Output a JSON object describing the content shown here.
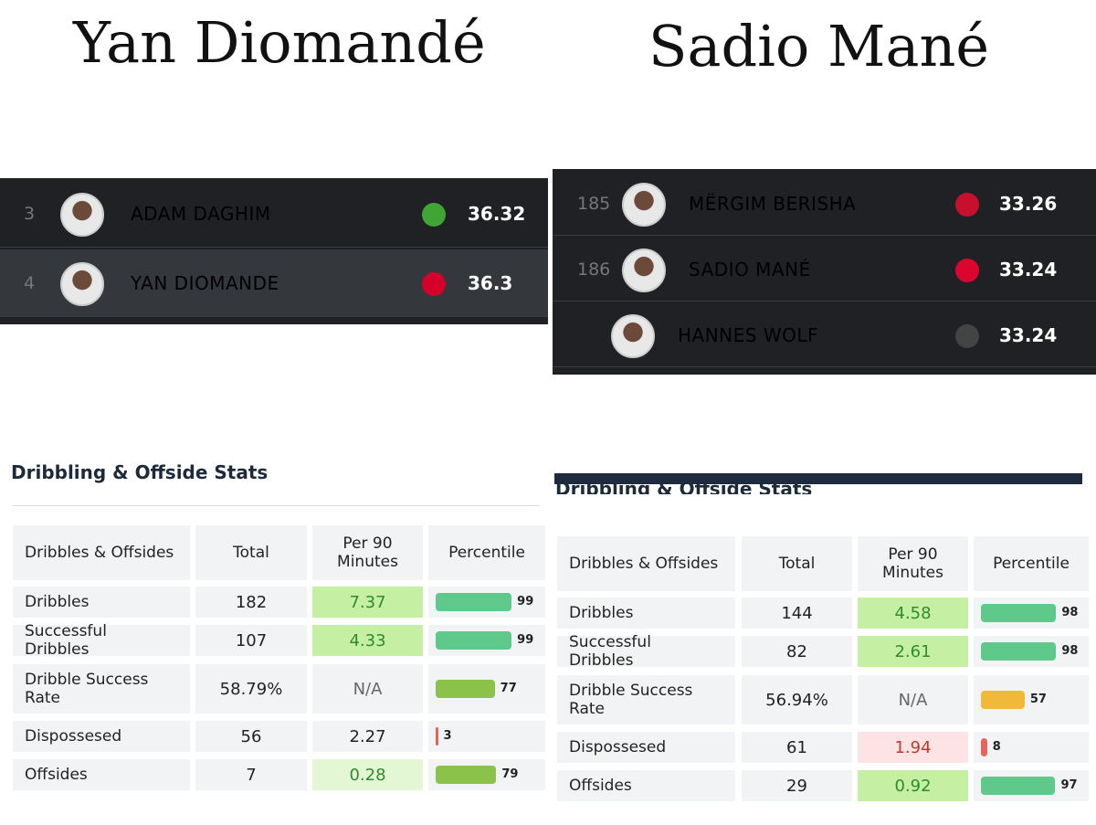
{
  "panels": [
    {
      "name": "Yan Diomandé",
      "ranking": [
        {
          "rank": "3",
          "player": "ADAM DAGHIM",
          "score": "36.32"
        },
        {
          "rank": "4",
          "player": "YAN DIOMANDE",
          "score": "36.3"
        }
      ],
      "stats": {
        "title": "Dribbling & Offside Stats",
        "headers": [
          "Dribbles & Offsides",
          "Total",
          "Per 90 Minutes",
          "Percentile"
        ],
        "rows": [
          {
            "label": "Dribbles",
            "total": "182",
            "per90": "7.37",
            "percentile": 99,
            "per90_color": "#c5f0a4",
            "bar_color": "#5fc98c"
          },
          {
            "label": "Successful Dribbles",
            "total": "107",
            "per90": "4.33",
            "percentile": 99,
            "per90_color": "#c5f0a4",
            "bar_color": "#5fc98c"
          },
          {
            "label": "Dribble Success Rate",
            "total": "58.79%",
            "per90": "N/A",
            "percentile": 77,
            "per90_color": "#f2f3f5",
            "bar_color": "#8bc34a"
          },
          {
            "label": "Dispossesed",
            "total": "56",
            "per90": "2.27",
            "percentile": 3,
            "per90_color": "#f2f3f5",
            "bar_color": "#e8625a"
          },
          {
            "label": "Offsides",
            "total": "7",
            "per90": "0.28",
            "percentile": 79,
            "per90_color": "#e3f7d4",
            "bar_color": "#8bc34a"
          }
        ]
      }
    },
    {
      "name": "Sadio Mané",
      "ranking": [
        {
          "rank": "185",
          "player": "MËRGIM BERISHA",
          "score": "33.26"
        },
        {
          "rank": "186",
          "player": "SADIO MANÉ",
          "score": "33.24"
        },
        {
          "rank": null,
          "player": "HANNES WOLF",
          "score": "33.24"
        }
      ],
      "stats": {
        "title": "Dribbling & Offside Stats",
        "headers": [
          "Dribbles & Offsides",
          "Total",
          "Per 90 Minutes",
          "Percentile"
        ],
        "rows": [
          {
            "label": "Dribbles",
            "total": "144",
            "per90": "4.58",
            "percentile": 98,
            "per90_color": "#c5f0a4",
            "bar_color": "#5fc98c"
          },
          {
            "label": "Successful Dribbles",
            "total": "82",
            "per90": "2.61",
            "percentile": 98,
            "per90_color": "#c5f0a4",
            "bar_color": "#5fc98c"
          },
          {
            "label": "Dribble Success Rate",
            "total": "56.94%",
            "per90": "N/A",
            "percentile": 57,
            "per90_color": "#f2f3f5",
            "bar_color": "#f0b93a"
          },
          {
            "label": "Dispossesed",
            "total": "61",
            "per90": "1.94",
            "percentile": 8,
            "per90_color": "#fde3e3",
            "bar_color": "#e8625a"
          },
          {
            "label": "Offsides",
            "total": "29",
            "per90": "0.92",
            "percentile": 97,
            "per90_color": "#c5f0a4",
            "bar_color": "#5fc98c"
          }
        ]
      }
    }
  ]
}
